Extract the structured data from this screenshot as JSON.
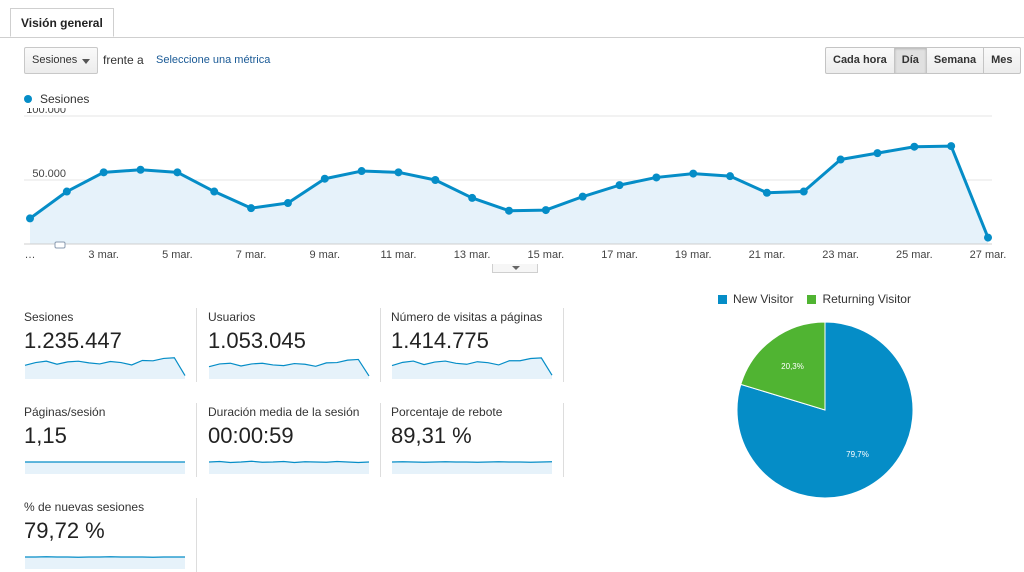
{
  "tab": {
    "label": "Visión general"
  },
  "controls": {
    "metric_selected": "Sesiones",
    "compare_text": "frente a",
    "compare_link": "Seleccione una métrica",
    "granularity": [
      {
        "label": "Cada hora",
        "active": false
      },
      {
        "label": "Día",
        "active": true
      },
      {
        "label": "Semana",
        "active": false
      },
      {
        "label": "Mes",
        "active": false
      }
    ]
  },
  "colors": {
    "accent": "#058dc7",
    "returning": "#50b432",
    "area_fill": "#e6f2fa"
  },
  "chart_data": [
    {
      "type": "area",
      "series": [
        {
          "name": "Sesiones",
          "values": [
            20000,
            41000,
            56000,
            58000,
            56000,
            41000,
            28000,
            32000,
            51000,
            57000,
            56000,
            50000,
            36000,
            26000,
            26500,
            37000,
            46000,
            52000,
            55000,
            53000,
            40000,
            41000,
            66000,
            71000,
            76000,
            76500,
            5000
          ]
        }
      ],
      "x_labels": [
        "…",
        "",
        "3 mar.",
        "",
        "5 mar.",
        "",
        "7 mar.",
        "",
        "9 mar.",
        "",
        "11 mar.",
        "",
        "13 mar.",
        "",
        "15 mar.",
        "",
        "17 mar.",
        "",
        "19 mar.",
        "",
        "21 mar.",
        "",
        "23 mar.",
        "",
        "25 mar.",
        "",
        "27 mar."
      ],
      "y_ticks": [
        {
          "value": 50000,
          "label": "50.000"
        },
        {
          "value": 100000,
          "label": "100.000"
        }
      ],
      "ylim": [
        0,
        100000
      ],
      "legend": "top-left",
      "grid": true
    },
    {
      "type": "pie",
      "legend": "top",
      "slices": [
        {
          "name": "New Visitor",
          "value": 79.7,
          "label": "79,7%",
          "color": "#058dc7"
        },
        {
          "name": "Returning Visitor",
          "value": 20.3,
          "label": "20,3%",
          "color": "#50b432"
        }
      ]
    }
  ],
  "scorecards": [
    {
      "label": "Sesiones",
      "value": "1.235.447",
      "spark": [
        40,
        48,
        52,
        43,
        50,
        52,
        47,
        44,
        51,
        48,
        41,
        54,
        53,
        60,
        62,
        10
      ],
      "spark_max": 70
    },
    {
      "label": "Usuarios",
      "value": "1.053.045",
      "spark": [
        36,
        44,
        46,
        38,
        44,
        46,
        41,
        39,
        45,
        43,
        37,
        47,
        48,
        55,
        57,
        9
      ],
      "spark_max": 70
    },
    {
      "label": "Número de visitas a páginas",
      "value": "1.414.775",
      "spark": [
        42,
        52,
        56,
        45,
        53,
        56,
        49,
        46,
        54,
        51,
        44,
        57,
        57,
        64,
        66,
        12
      ],
      "spark_max": 75
    },
    {
      "label": "Páginas/sesión",
      "value": "1,15",
      "spark": [
        50,
        50,
        50,
        50,
        50,
        50,
        50,
        50,
        50,
        50,
        50,
        50,
        50,
        50,
        50,
        50
      ],
      "spark_max": 100
    },
    {
      "label": "Duración media de la sesión",
      "value": "00:00:59",
      "spark": [
        50,
        52,
        48,
        50,
        53,
        49,
        50,
        52,
        48,
        51,
        50,
        49,
        52,
        50,
        48,
        50
      ],
      "spark_max": 100
    },
    {
      "label": "Porcentaje de rebote",
      "value": "89,31 %",
      "spark": [
        50,
        51,
        50,
        49,
        50,
        51,
        50,
        50,
        49,
        50,
        51,
        50,
        50,
        49,
        50,
        51
      ],
      "spark_max": 100
    },
    {
      "label": "% de nuevas sesiones",
      "value": "79,72 %",
      "spark": [
        50,
        50,
        51,
        50,
        50,
        49,
        50,
        50,
        51,
        50,
        50,
        50,
        49,
        50,
        50,
        50
      ],
      "spark_max": 100
    }
  ]
}
